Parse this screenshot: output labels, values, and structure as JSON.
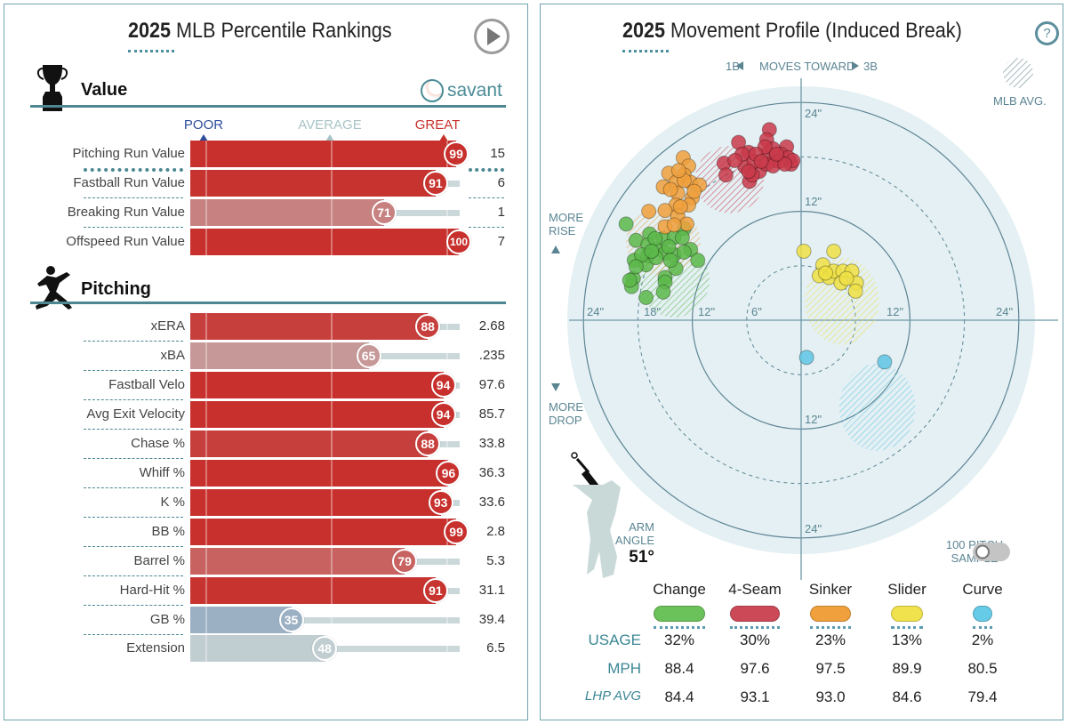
{
  "left": {
    "title_year": "2025",
    "title_rest": " MLB Percentile Rankings",
    "play_icon": "play-icon",
    "brand": "savant",
    "scale": {
      "poor": "POOR",
      "average": "AVERAGE",
      "great": "GREAT",
      "poor_color": "#2f4d9c",
      "average_color": "#a9c4c7",
      "great_color": "#c8302c"
    },
    "sections": [
      {
        "title": "Value",
        "icon": "trophy-icon",
        "rows": [
          {
            "label": "Pitching Run Value",
            "percentile": 99,
            "value": "15"
          },
          {
            "label": "Fastball Run Value",
            "percentile": 91,
            "value": "6"
          },
          {
            "label": "Breaking Run Value",
            "percentile": 71,
            "value": "1"
          },
          {
            "label": "Offspeed Run Value",
            "percentile": 100,
            "value": "7"
          }
        ]
      },
      {
        "title": "Pitching",
        "icon": "pitcher-icon",
        "rows": [
          {
            "label": "xERA",
            "percentile": 88,
            "value": "2.68"
          },
          {
            "label": "xBA",
            "percentile": 65,
            "value": ".235"
          },
          {
            "label": "Fastball Velo",
            "percentile": 94,
            "value": "97.6"
          },
          {
            "label": "Avg Exit Velocity",
            "percentile": 94,
            "value": "85.7"
          },
          {
            "label": "Chase %",
            "percentile": 88,
            "value": "33.8"
          },
          {
            "label": "Whiff %",
            "percentile": 96,
            "value": "36.3"
          },
          {
            "label": "K %",
            "percentile": 93,
            "value": "33.6"
          },
          {
            "label": "BB %",
            "percentile": 99,
            "value": "2.8"
          },
          {
            "label": "Barrel %",
            "percentile": 79,
            "value": "5.3"
          },
          {
            "label": "Hard-Hit %",
            "percentile": 91,
            "value": "31.1"
          },
          {
            "label": "GB %",
            "percentile": 35,
            "value": "39.4"
          },
          {
            "label": "Extension",
            "percentile": 48,
            "value": "6.5"
          }
        ]
      }
    ]
  },
  "right": {
    "title_year": "2025",
    "title_rest": " Movement Profile (Induced Break)",
    "help_icon": "?",
    "moves_toward": {
      "left": "1B",
      "center": "MOVES TOWARD",
      "right": "3B"
    },
    "mlb_avg": "MLB AVG.",
    "more_rise": [
      "MORE",
      "RISE"
    ],
    "more_drop": [
      "MORE",
      "DROP"
    ],
    "ring_labels": {
      "h": [
        "24\"",
        "18\"",
        "12\"",
        "6\"",
        "12\"",
        "24\""
      ],
      "v": [
        "24\"",
        "12\"",
        "12\"",
        "24\""
      ]
    },
    "arm_angle": {
      "label1": "ARM",
      "label2": "ANGLE",
      "value": "51°"
    },
    "sample_toggle": {
      "label1": "100 PITCH",
      "label2": "SAMPLE",
      "on": false
    },
    "row_labels": {
      "usage": "USAGE",
      "mph": "MPH",
      "lhp": "LHP AVG"
    },
    "pitches": [
      {
        "name": "Change",
        "color": "#6cc25a",
        "usage": "32%",
        "mph": "88.4",
        "lhp_avg": "84.4"
      },
      {
        "name": "4-Seam",
        "color": "#cc4a58",
        "usage": "30%",
        "mph": "97.6",
        "lhp_avg": "93.1"
      },
      {
        "name": "Sinker",
        "color": "#f0a03c",
        "usage": "23%",
        "mph": "97.5",
        "lhp_avg": "93.0"
      },
      {
        "name": "Slider",
        "color": "#f0e24c",
        "usage": "13%",
        "mph": "89.9",
        "lhp_avg": "84.6"
      },
      {
        "name": "Curve",
        "color": "#66cbe6",
        "usage": "2%",
        "mph": "80.5",
        "lhp_avg": "79.4"
      }
    ]
  },
  "chart_data": {
    "type": "scatter",
    "title": "2025 Movement Profile (Induced Break)",
    "xlim": [
      -24,
      24
    ],
    "ylim": [
      -24,
      24
    ],
    "rings_solid": [
      12,
      24
    ],
    "rings_dashed": [
      6,
      18
    ],
    "series": [
      {
        "name": "Change",
        "color": "#5cb84a",
        "mlb_avg": [
          -14,
          4.4,
          3.9,
          4.1
        ],
        "points": [
          [
            -19.3,
            10.6
          ],
          [
            -16.7,
            9.5
          ],
          [
            -18.2,
            8.8
          ],
          [
            -15.2,
            9.0
          ],
          [
            -14.0,
            9.1
          ],
          [
            -12.9,
            10.1
          ],
          [
            -16.9,
            8.3
          ],
          [
            -16.0,
            7.8
          ],
          [
            -15.0,
            7.4
          ],
          [
            -14.0,
            7.2
          ],
          [
            -12.2,
            7.8
          ],
          [
            -11.4,
            6.6
          ],
          [
            -18.4,
            6.6
          ],
          [
            -16.9,
            7.1
          ],
          [
            -17.1,
            6.1
          ],
          [
            -13.8,
            5.7
          ],
          [
            -18.5,
            4.6
          ],
          [
            -18.7,
            3.7
          ],
          [
            -18.9,
            4.4
          ],
          [
            -15.0,
            4.7
          ],
          [
            -15.0,
            4.2
          ],
          [
            -15.2,
            3.1
          ],
          [
            -17.1,
            2.5
          ],
          [
            -16.0,
            6.9
          ],
          [
            -14.6,
            8.1
          ],
          [
            -16.1,
            9.0
          ],
          [
            -13.1,
            9.1
          ],
          [
            -12.9,
            7.5
          ],
          [
            -17.6,
            7.2
          ],
          [
            -18.2,
            5.9
          ],
          [
            -14.4,
            6.6
          ],
          [
            -16.5,
            7.6
          ]
        ]
      },
      {
        "name": "4-Seam",
        "color": "#c93a4a",
        "mlb_avg": [
          -7.9,
          15.5,
          3.8,
          3.7
        ],
        "points": [
          [
            -3.5,
            21.0
          ],
          [
            -6.9,
            19.6
          ],
          [
            -8.5,
            17.3
          ],
          [
            -8.3,
            16.0
          ],
          [
            -5.8,
            18.5
          ],
          [
            -5.7,
            15.3
          ],
          [
            -3.8,
            19.9
          ],
          [
            -1.6,
            19.1
          ],
          [
            -1.1,
            17.2
          ],
          [
            -2.9,
            17.6
          ],
          [
            -4.6,
            16.4
          ],
          [
            -6.2,
            16.9
          ],
          [
            -5.2,
            17.5
          ],
          [
            -3.7,
            18.4
          ],
          [
            -2.2,
            18.3
          ],
          [
            -1.4,
            17.9
          ],
          [
            -3.1,
            18.9
          ],
          [
            -4.0,
            19.1
          ],
          [
            -0.9,
            17.6
          ],
          [
            -6.5,
            18.3
          ],
          [
            -5.0,
            18.3
          ],
          [
            -2.4,
            17.5
          ],
          [
            -3.8,
            17.2
          ],
          [
            -5.4,
            16.0
          ],
          [
            -3.1,
            17.0
          ],
          [
            -4.4,
            17.5
          ],
          [
            -1.8,
            17.2
          ],
          [
            -7.3,
            17.6
          ],
          [
            -5.8,
            16.4
          ],
          [
            -2.7,
            18.3
          ]
        ]
      },
      {
        "name": "Sinker",
        "color": "#f0a03c",
        "mlb_avg": [
          -15.2,
          8.6,
          4.1,
          3.8
        ],
        "points": [
          [
            -13.0,
            17.9
          ],
          [
            -12.4,
            17.0
          ],
          [
            -14.6,
            16.2
          ],
          [
            -12.9,
            16.0
          ],
          [
            -13.8,
            15.2
          ],
          [
            -12.2,
            15.2
          ],
          [
            -11.2,
            14.9
          ],
          [
            -15.2,
            14.7
          ],
          [
            -13.6,
            14.0
          ],
          [
            -12.0,
            13.5
          ],
          [
            -12.4,
            12.7
          ],
          [
            -13.8,
            12.7
          ],
          [
            -15.0,
            12.1
          ],
          [
            -16.8,
            12.0
          ],
          [
            -13.6,
            11.5
          ],
          [
            -12.6,
            10.6
          ],
          [
            -15.0,
            10.3
          ],
          [
            -12.9,
            15.4
          ],
          [
            -14.4,
            14.4
          ],
          [
            -13.3,
            12.5
          ],
          [
            -11.8,
            14.2
          ],
          [
            -13.5,
            16.5
          ],
          [
            -14.0,
            10.5
          ]
        ]
      },
      {
        "name": "Slider",
        "color": "#efe043",
        "mlb_avg": [
          4.5,
          2.1,
          4.1,
          4.8
        ],
        "points": [
          [
            0.3,
            7.6
          ],
          [
            3.6,
            7.6
          ],
          [
            2.4,
            6.1
          ],
          [
            2.0,
            4.9
          ],
          [
            3.1,
            4.7
          ],
          [
            3.6,
            5.4
          ],
          [
            4.6,
            5.4
          ],
          [
            5.6,
            5.4
          ],
          [
            4.4,
            4.1
          ],
          [
            6.1,
            4.1
          ],
          [
            6.0,
            3.2
          ],
          [
            2.7,
            5.2
          ],
          [
            5.0,
            4.6
          ]
        ]
      },
      {
        "name": "Curve",
        "color": "#5fc6e4",
        "mlb_avg": [
          8.4,
          -9.6,
          4.2,
          4.8
        ],
        "points": [
          [
            0.6,
            -4.1
          ],
          [
            9.2,
            -4.6
          ]
        ]
      }
    ]
  }
}
